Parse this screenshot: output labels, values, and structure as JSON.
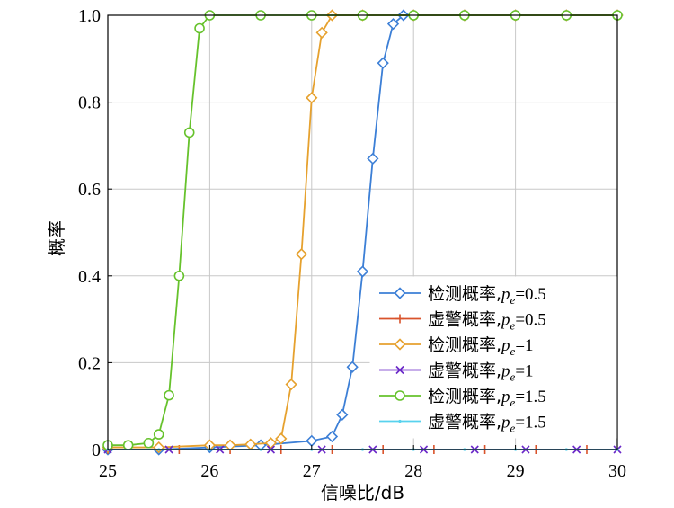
{
  "chart_data": {
    "type": "line",
    "title": "",
    "xlabel": "信噪比/dB",
    "ylabel": "概率",
    "xlim": [
      25,
      30
    ],
    "ylim": [
      0,
      1
    ],
    "xticks": [
      25,
      26,
      27,
      28,
      29,
      30
    ],
    "xtick_labels": [
      "25",
      "26",
      "27",
      "28",
      "29",
      "30"
    ],
    "yticks": [
      0,
      0.2,
      0.4,
      0.6,
      0.8,
      1.0
    ],
    "ytick_labels": [
      "0",
      "0.2",
      "0.4",
      "0.6",
      "0.8",
      "1.0"
    ],
    "grid": true,
    "legend_position": "bottom-right",
    "series": [
      {
        "name": "检测概率,pe=0.5",
        "legend_prefix": "检测概率,",
        "legend_value": "=0.5",
        "color": "#3c7fd6",
        "marker": "diamond",
        "x": [
          25.0,
          25.5,
          26.0,
          26.5,
          27.0,
          27.2,
          27.3,
          27.4,
          27.5,
          27.6,
          27.7,
          27.8,
          27.9,
          28.0,
          28.5,
          29.0,
          29.5,
          30.0
        ],
        "y": [
          0.0,
          0.0,
          0.005,
          0.01,
          0.02,
          0.03,
          0.08,
          0.19,
          0.41,
          0.67,
          0.89,
          0.98,
          1.0,
          1.0,
          1.0,
          1.0,
          1.0,
          1.0
        ]
      },
      {
        "name": "虚警概率,pe=0.5",
        "legend_prefix": "虚警概率,",
        "legend_value": "=0.5",
        "color": "#d9532b",
        "marker": "plus",
        "x": [
          25.0,
          25.7,
          26.2,
          26.7,
          27.2,
          27.7,
          28.2,
          28.7,
          29.2,
          29.7
        ],
        "y": [
          0,
          0,
          0,
          0,
          0,
          0,
          0,
          0,
          0,
          0
        ]
      },
      {
        "name": "检测概率,pe=1",
        "legend_prefix": "检测概率,",
        "legend_value": "=1",
        "color": "#e6a12e",
        "marker": "diamond",
        "x": [
          25.0,
          25.5,
          26.0,
          26.2,
          26.4,
          26.6,
          26.7,
          26.8,
          26.9,
          27.0,
          27.1,
          27.2,
          27.5,
          28.0,
          28.5,
          29.0,
          29.5,
          30.0
        ],
        "y": [
          0.005,
          0.005,
          0.01,
          0.01,
          0.012,
          0.015,
          0.025,
          0.15,
          0.45,
          0.81,
          0.96,
          1.0,
          1.0,
          1.0,
          1.0,
          1.0,
          1.0,
          1.0
        ]
      },
      {
        "name": "虚警概率,pe=1",
        "legend_prefix": "虚警概率,",
        "legend_value": "=1",
        "color": "#6a28c8",
        "marker": "x",
        "x": [
          25.0,
          25.6,
          26.1,
          26.6,
          27.1,
          27.6,
          28.1,
          28.6,
          29.1,
          29.6,
          30.0
        ],
        "y": [
          0,
          0,
          0,
          0,
          0,
          0,
          0,
          0,
          0,
          0,
          0
        ]
      },
      {
        "name": "检测概率,pe=1.5",
        "legend_prefix": "检测概率,",
        "legend_value": "=1.5",
        "color": "#66c22c",
        "marker": "circle",
        "x": [
          25.0,
          25.2,
          25.4,
          25.5,
          25.6,
          25.7,
          25.8,
          25.9,
          26.0,
          26.5,
          27.0,
          27.5,
          28.0,
          28.5,
          29.0,
          29.5,
          30.0
        ],
        "y": [
          0.01,
          0.01,
          0.015,
          0.035,
          0.125,
          0.4,
          0.73,
          0.97,
          1.0,
          1.0,
          1.0,
          1.0,
          1.0,
          1.0,
          1.0,
          1.0,
          1.0
        ]
      },
      {
        "name": "虚警概率,pe=1.5",
        "legend_prefix": "虚警概率,",
        "legend_value": "=1.5",
        "color": "#58d2ee",
        "marker": "dot",
        "x": [
          25.0,
          25.5,
          26.0,
          26.5,
          27.0,
          27.5,
          28.0,
          28.5,
          29.0,
          29.5,
          30.0
        ],
        "y": [
          0,
          0,
          0,
          0,
          0,
          0,
          0,
          0,
          0,
          0,
          0
        ]
      }
    ]
  }
}
